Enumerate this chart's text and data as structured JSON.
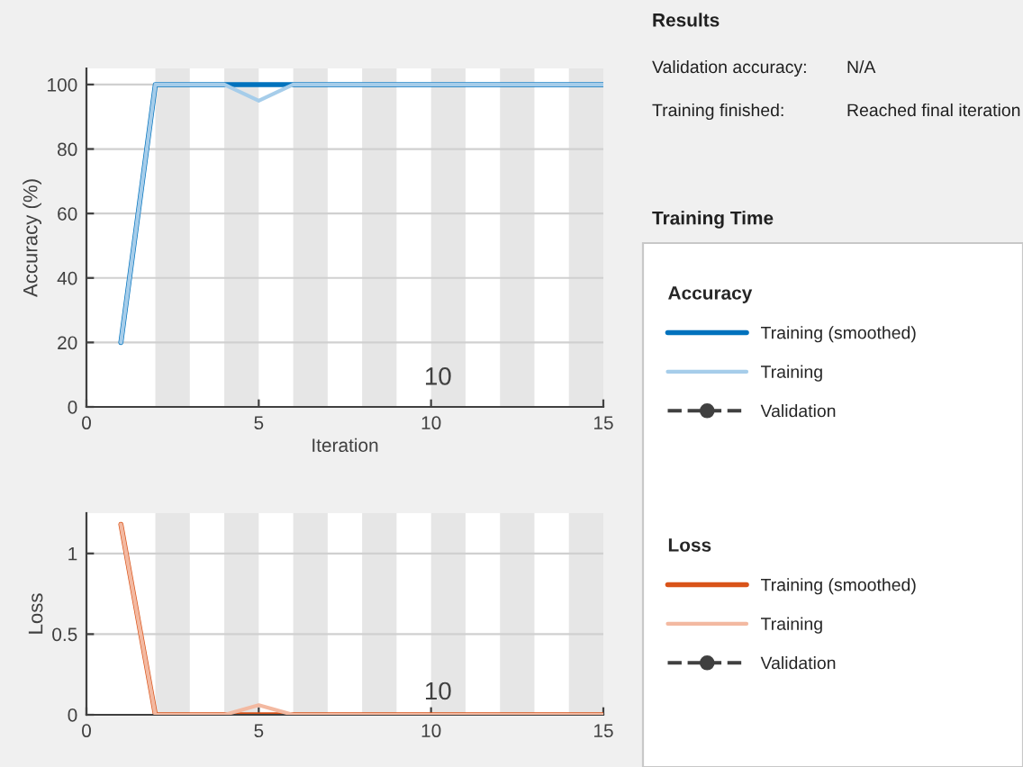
{
  "chart_data": [
    {
      "type": "line",
      "xlabel": "Iteration",
      "ylabel": "Accuracy (%)",
      "legend_title": "Accuracy",
      "legend": "right",
      "x": [
        1,
        2,
        3,
        4,
        5,
        6,
        7,
        8,
        9,
        10,
        11,
        12,
        13,
        14,
        15
      ],
      "series": [
        {
          "name": "Training (smoothed)",
          "color": "#0072bd",
          "values": [
            20,
            100,
            100,
            100,
            100,
            100,
            100,
            100,
            100,
            100,
            100,
            100,
            100,
            100,
            100
          ]
        },
        {
          "name": "Training",
          "color": "#a6cdea",
          "values": [
            20,
            100,
            100,
            100,
            95,
            100,
            100,
            100,
            100,
            100,
            100,
            100,
            100,
            100,
            100
          ]
        },
        {
          "name": "Validation",
          "color": "#404040",
          "marker": "circle",
          "line_style": "dashed",
          "values": [
            null,
            null,
            null,
            null,
            null,
            null,
            null,
            null,
            null,
            null,
            null,
            null,
            null,
            null,
            null
          ]
        }
      ],
      "xlim": [
        0,
        15
      ],
      "xticks": [
        0,
        5,
        10,
        15
      ],
      "ylim": [
        0,
        105
      ],
      "yticks": [
        0,
        20,
        40,
        60,
        80,
        100
      ],
      "grid": "y",
      "bands": [
        {
          "axis": "x",
          "from": 2,
          "to": 3,
          "color": "#e6e6e6"
        },
        {
          "axis": "x",
          "from": 4,
          "to": 5,
          "color": "#e6e6e6"
        },
        {
          "axis": "x",
          "from": 6,
          "to": 7,
          "color": "#e6e6e6"
        },
        {
          "axis": "x",
          "from": 8,
          "to": 9,
          "color": "#e6e6e6"
        },
        {
          "axis": "x",
          "from": 10,
          "to": 11,
          "color": "#e6e6e6"
        },
        {
          "axis": "x",
          "from": 12,
          "to": 13,
          "color": "#e6e6e6"
        },
        {
          "axis": "x",
          "from": 14,
          "to": 15,
          "color": "#e6e6e6"
        }
      ],
      "annotations": [
        "10",
        "Results",
        "Validation accuracy:",
        "N/A",
        "Training finished:",
        "Reached final iteration",
        "Training Time"
      ]
    },
    {
      "type": "line",
      "ylabel": "Loss",
      "legend_title": "Loss",
      "legend": "right",
      "x": [
        1,
        2,
        3,
        4,
        5,
        6,
        7,
        8,
        9,
        10,
        11,
        12,
        13,
        14,
        15
      ],
      "series": [
        {
          "name": "Training (smoothed)",
          "color": "#d95319",
          "values": [
            1.18,
            0,
            0,
            0,
            0,
            0,
            0,
            0,
            0,
            0,
            0,
            0,
            0,
            0,
            0
          ]
        },
        {
          "name": "Training",
          "color": "#f3b9a1",
          "values": [
            1.18,
            0,
            0,
            0,
            0.06,
            0,
            0,
            0,
            0,
            0,
            0,
            0,
            0,
            0,
            0
          ]
        },
        {
          "name": "Validation",
          "color": "#404040",
          "marker": "circle",
          "line_style": "dashed",
          "values": [
            null,
            null,
            null,
            null,
            null,
            null,
            null,
            null,
            null,
            null,
            null,
            null,
            null,
            null,
            null
          ]
        }
      ],
      "xlim": [
        0,
        15
      ],
      "xticks": [
        0,
        5,
        10,
        15
      ],
      "ylim": [
        0,
        1.25
      ],
      "yticks": [
        0,
        0.5,
        1
      ],
      "grid": "y",
      "bands": [
        {
          "axis": "x",
          "from": 2,
          "to": 3,
          "color": "#e6e6e6"
        },
        {
          "axis": "x",
          "from": 4,
          "to": 5,
          "color": "#e6e6e6"
        },
        {
          "axis": "x",
          "from": 6,
          "to": 7,
          "color": "#e6e6e6"
        },
        {
          "axis": "x",
          "from": 8,
          "to": 9,
          "color": "#e6e6e6"
        },
        {
          "axis": "x",
          "from": 10,
          "to": 11,
          "color": "#e6e6e6"
        },
        {
          "axis": "x",
          "from": 12,
          "to": 13,
          "color": "#e6e6e6"
        },
        {
          "axis": "x",
          "from": 14,
          "to": 15,
          "color": "#e6e6e6"
        }
      ],
      "annotations": [
        "10"
      ]
    }
  ]
}
